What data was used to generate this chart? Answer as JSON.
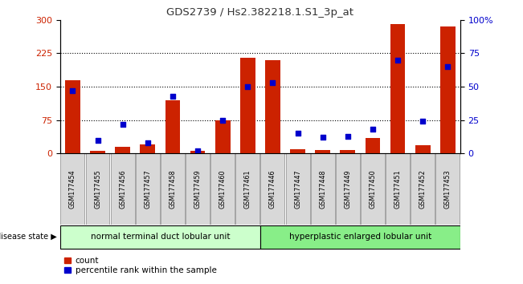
{
  "title": "GDS2739 / Hs2.382218.1.S1_3p_at",
  "samples": [
    "GSM177454",
    "GSM177455",
    "GSM177456",
    "GSM177457",
    "GSM177458",
    "GSM177459",
    "GSM177460",
    "GSM177461",
    "GSM177446",
    "GSM177447",
    "GSM177448",
    "GSM177449",
    "GSM177450",
    "GSM177451",
    "GSM177452",
    "GSM177453"
  ],
  "counts": [
    165,
    5,
    15,
    20,
    120,
    5,
    75,
    215,
    210,
    10,
    8,
    8,
    35,
    290,
    18,
    285
  ],
  "percentiles": [
    47,
    10,
    22,
    8,
    43,
    2,
    25,
    50,
    53,
    15,
    12,
    13,
    18,
    70,
    24,
    65
  ],
  "group1_label": "normal terminal duct lobular unit",
  "group2_label": "hyperplastic enlarged lobular unit",
  "group1_count": 8,
  "group2_count": 8,
  "ylim_left": [
    0,
    300
  ],
  "ylim_right": [
    0,
    100
  ],
  "yticks_left": [
    0,
    75,
    150,
    225,
    300
  ],
  "yticks_right": [
    0,
    25,
    50,
    75,
    100
  ],
  "bar_color": "#cc2200",
  "dot_color": "#0000cc",
  "group1_color": "#ccffcc",
  "group2_color": "#88ee88",
  "left_axis_color": "#cc2200",
  "right_axis_color": "#0000cc",
  "legend_bar_label": "count",
  "legend_dot_label": "percentile rank within the sample",
  "disease_state_label": "disease state"
}
